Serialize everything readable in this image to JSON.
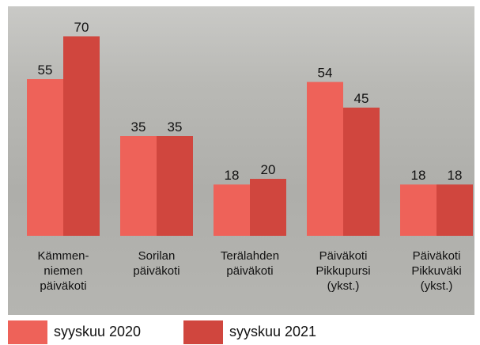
{
  "chart_data": {
    "type": "bar",
    "categories": [
      "Kämmen-\nniemen\npäiväkoti",
      "Sorilan\npäiväkoti",
      "Terälahden\npäiväkoti",
      "Päiväkoti\nPikkupursi\n(ykst.)",
      "Päiväkoti\nPikkuväki\n(ykst.)"
    ],
    "series": [
      {
        "name": "syyskuu 2020",
        "color": "#ee6259",
        "values": [
          55,
          35,
          18,
          54,
          18
        ]
      },
      {
        "name": "syyskuu 2021",
        "color": "#d0463e",
        "values": [
          70,
          35,
          20,
          45,
          18
        ]
      }
    ]
  }
}
